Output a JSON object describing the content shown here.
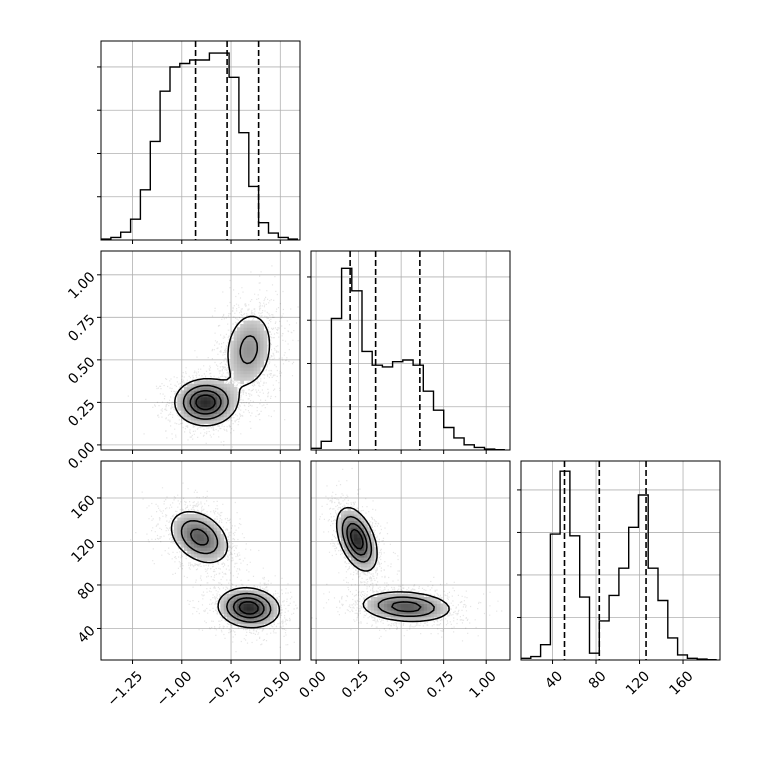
{
  "chart_data": {
    "type": "corner",
    "parameters": [
      {
        "range": [
          -1.41,
          -0.4
        ],
        "ticks": [
          -1.25,
          -1.0,
          -0.75,
          -0.5
        ],
        "tick_labels": [
          "−1.25",
          "−1.00",
          "−0.75",
          "−0.50"
        ],
        "quantiles": [
          -0.93,
          -0.77,
          -0.61
        ]
      },
      {
        "range": [
          -0.03,
          1.14
        ],
        "ticks": [
          0.0,
          0.25,
          0.5,
          0.75,
          1.0
        ],
        "tick_labels": [
          "0.00",
          "0.25",
          "0.50",
          "0.75",
          "1.00"
        ],
        "quantiles": [
          0.2,
          0.35,
          0.61
        ]
      },
      {
        "range": [
          11,
          194
        ],
        "ticks": [
          40,
          80,
          120,
          160
        ],
        "tick_labels": [
          "40",
          "80",
          "120",
          "160"
        ],
        "quantiles": [
          51,
          83,
          126
        ]
      }
    ],
    "histograms": [
      {
        "param": 0,
        "edges": [
          -1.41,
          -1.36,
          -1.31,
          -1.26,
          -1.21,
          -1.16,
          -1.11,
          -1.06,
          -1.01,
          -0.96,
          -0.91,
          -0.86,
          -0.81,
          -0.76,
          -0.71,
          -0.66,
          -0.61,
          -0.56,
          -0.51,
          -0.46,
          -0.41
        ],
        "counts": [
          0.5,
          1.5,
          4.5,
          12,
          29,
          57,
          86,
          100,
          102,
          104,
          104,
          108,
          108,
          94,
          62,
          31,
          10,
          4,
          1.5,
          0.5
        ],
        "ymax": 115
      },
      {
        "param": 1,
        "edges": [
          -0.03,
          0.03,
          0.09,
          0.15,
          0.21,
          0.27,
          0.33,
          0.39,
          0.45,
          0.51,
          0.57,
          0.63,
          0.69,
          0.75,
          0.81,
          0.87,
          0.93,
          0.99,
          1.05,
          1.11
        ],
        "counts": [
          1,
          5,
          76,
          105,
          92,
          57,
          49,
          48,
          51,
          52,
          49,
          34,
          23,
          13,
          7,
          3,
          1.5,
          0.5,
          0.2
        ],
        "ymax": 115
      },
      {
        "param": 2,
        "edges": [
          11,
          20,
          29,
          38,
          47,
          56,
          65,
          74,
          83,
          92,
          101,
          110,
          119,
          128,
          137,
          146,
          155,
          164,
          173,
          182,
          191
        ],
        "counts": [
          1,
          2,
          9,
          74,
          111,
          73,
          37,
          4,
          23,
          38,
          54,
          78,
          97,
          54,
          35,
          13,
          3,
          1,
          0.5,
          0.2
        ],
        "ymax": 117
      }
    ],
    "pairs": [
      {
        "x": 0,
        "y": 1,
        "components": [
          {
            "mx": -0.88,
            "my": 0.25,
            "sx": 0.085,
            "sy": 0.075,
            "rho": 0.0,
            "w": 0.55
          },
          {
            "mx": -0.66,
            "my": 0.56,
            "sx": 0.075,
            "sy": 0.14,
            "rho": 0.15,
            "w": 0.45
          }
        ]
      },
      {
        "x": 0,
        "y": 2,
        "components": [
          {
            "mx": -0.91,
            "my": 124,
            "sx": 0.085,
            "sy": 14,
            "rho": -0.35,
            "w": 0.5
          },
          {
            "mx": -0.66,
            "my": 59,
            "sx": 0.085,
            "sy": 10,
            "rho": -0.1,
            "w": 0.5
          }
        ]
      },
      {
        "x": 1,
        "y": 2,
        "components": [
          {
            "mx": 0.24,
            "my": 122,
            "sx": 0.065,
            "sy": 16,
            "rho": -0.45,
            "w": 0.5
          },
          {
            "mx": 0.53,
            "my": 60,
            "sx": 0.15,
            "sy": 8,
            "rho": -0.15,
            "w": 0.5
          }
        ]
      }
    ],
    "contour_levels": [
      0.2,
      0.45,
      0.7,
      0.9
    ],
    "grid": true,
    "colors": {
      "line": "#000000",
      "grid": "#b0b0b0",
      "scatter": "#000000"
    }
  }
}
